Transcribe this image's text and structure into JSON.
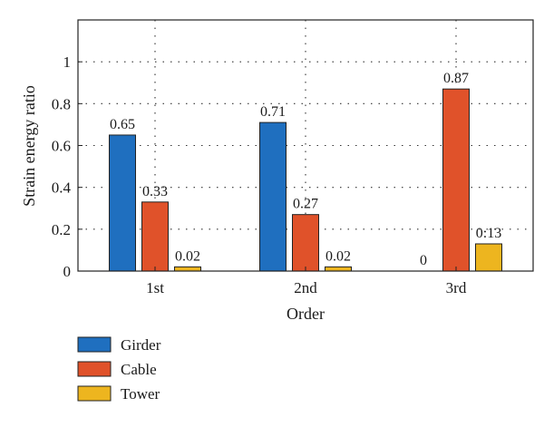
{
  "chart_data": {
    "type": "bar",
    "categories": [
      "1st",
      "2nd",
      "3rd"
    ],
    "series": [
      {
        "name": "Girder",
        "values": [
          0.65,
          0.71,
          0
        ],
        "color": "#1f6fbf"
      },
      {
        "name": "Cable",
        "values": [
          0.33,
          0.27,
          0.87
        ],
        "color": "#e0522a"
      },
      {
        "name": "Tower",
        "values": [
          0.02,
          0.02,
          0.13
        ],
        "color": "#edb51f"
      }
    ],
    "data_labels": [
      [
        "0.65",
        "0.33",
        "0.02"
      ],
      [
        "0.71",
        "0.27",
        "0.02"
      ],
      [
        "0",
        "0.87",
        "0:13"
      ]
    ],
    "xlabel": "Order",
    "ylabel": "Strain energy ratio",
    "ylim": [
      0,
      1.2
    ],
    "yticks": [
      {
        "value": 0,
        "label": "0"
      },
      {
        "value": 0.2,
        "label": "0.2"
      },
      {
        "value": 0.4,
        "label": "0.4"
      },
      {
        "value": 0.6,
        "label": "0.6"
      },
      {
        "value": 0.8,
        "label": "0.8"
      },
      {
        "value": 1,
        "label": "1"
      }
    ],
    "grid": true,
    "legend": "below"
  }
}
